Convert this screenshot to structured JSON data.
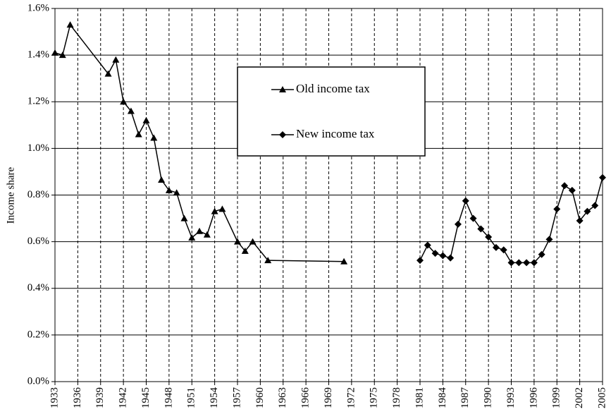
{
  "chart_data": {
    "type": "line",
    "ylabel": "Income share",
    "ylim": [
      0,
      1.6
    ],
    "yticks": [
      {
        "value": 0,
        "label": "0.0%"
      },
      {
        "value": 0.2,
        "label": "0.2%"
      },
      {
        "value": 0.4,
        "label": "0.4%"
      },
      {
        "value": 0.6,
        "label": "0.6%"
      },
      {
        "value": 0.8,
        "label": "0.8%"
      },
      {
        "value": 1.0,
        "label": "1.0%"
      },
      {
        "value": 1.2,
        "label": "1.2%"
      },
      {
        "value": 1.4,
        "label": "1.4%"
      },
      {
        "value": 1.6,
        "label": "1.6%"
      }
    ],
    "xlim": [
      1933,
      2005
    ],
    "xticks": [
      1933,
      1936,
      1939,
      1942,
      1945,
      1948,
      1951,
      1954,
      1957,
      1960,
      1963,
      1966,
      1969,
      1972,
      1975,
      1978,
      1981,
      1984,
      1987,
      1990,
      1993,
      1996,
      1999,
      2002,
      2005
    ],
    "grid": true,
    "series": [
      {
        "name": "Old income tax",
        "color": "#000000",
        "marker": "triangle",
        "x": [
          1933,
          1934,
          1935,
          1940,
          1941,
          1942,
          1943,
          1944,
          1945,
          1946,
          1947,
          1948,
          1949,
          1950,
          1951,
          1952,
          1953,
          1954,
          1955,
          1957,
          1958,
          1959,
          1961,
          1971
        ],
        "values": [
          1.41,
          1.4,
          1.53,
          1.32,
          1.38,
          1.2,
          1.16,
          1.06,
          1.12,
          1.045,
          0.865,
          0.82,
          0.81,
          0.7,
          0.617,
          0.645,
          0.63,
          0.73,
          0.74,
          0.6,
          0.56,
          0.6,
          0.52,
          0.515
        ]
      },
      {
        "name": "New income tax",
        "color": "#000000",
        "marker": "diamond",
        "x": [
          1981,
          1982,
          1983,
          1984,
          1985,
          1986,
          1987,
          1988,
          1989,
          1990,
          1991,
          1992,
          1993,
          1994,
          1995,
          1996,
          1997,
          1998,
          1999,
          2000,
          2001,
          2002,
          2003,
          2004,
          2005
        ],
        "values": [
          0.52,
          0.585,
          0.55,
          0.54,
          0.53,
          0.675,
          0.775,
          0.7,
          0.655,
          0.62,
          0.575,
          0.565,
          0.51,
          0.51,
          0.51,
          0.51,
          0.545,
          0.61,
          0.74,
          0.84,
          0.82,
          0.69,
          0.73,
          0.755,
          0.875
        ]
      }
    ]
  }
}
